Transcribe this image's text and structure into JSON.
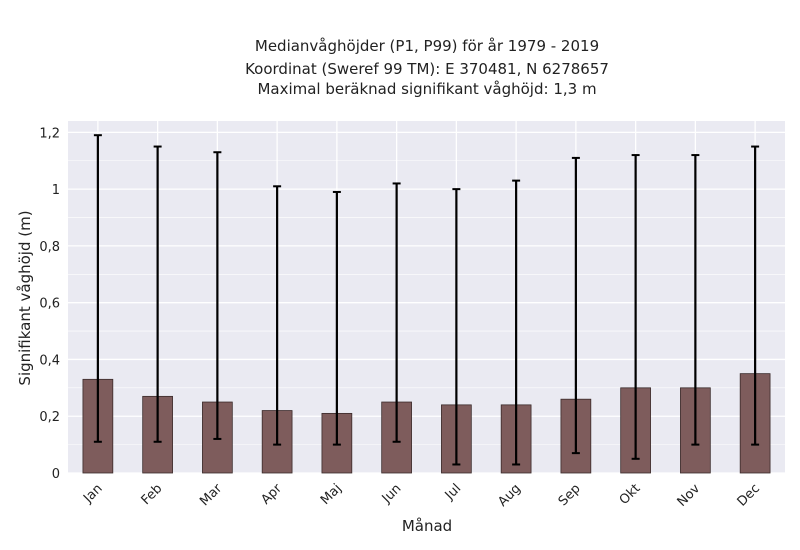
{
  "chart_data": {
    "type": "bar",
    "title_lines": [
      "Medianvåghöjder (P1, P99) för år 1979 - 2019",
      "Koordinat (Sweref 99 TM): E 370481, N 6278657",
      "Maximal beräknad signifikant våghöjd: 1,3 m"
    ],
    "xlabel": "Månad",
    "ylabel": "Signifikant våghöjd (m)",
    "categories": [
      "Jan",
      "Feb",
      "Mar",
      "Apr",
      "Maj",
      "Jun",
      "Jul",
      "Aug",
      "Sep",
      "Okt",
      "Nov",
      "Dec"
    ],
    "series": [
      {
        "values": [
          0.33,
          0.27,
          0.25,
          0.22,
          0.21,
          0.25,
          0.24,
          0.24,
          0.26,
          0.3,
          0.3,
          0.35
        ],
        "error_low": [
          0.11,
          0.11,
          0.12,
          0.1,
          0.1,
          0.11,
          0.03,
          0.03,
          0.07,
          0.05,
          0.1,
          0.1
        ],
        "error_high": [
          1.19,
          1.15,
          1.13,
          1.01,
          0.99,
          1.02,
          1.0,
          1.03,
          1.11,
          1.12,
          1.12,
          1.15
        ]
      }
    ],
    "ylim": [
      0,
      1.24
    ],
    "yticks": [
      0,
      0.2,
      0.4,
      0.6,
      0.8,
      1.0,
      1.2
    ],
    "ytick_labels": [
      "0",
      "0,2",
      "0,4",
      "0,6",
      "0,8",
      "1",
      "1,2"
    ],
    "grid": true,
    "colors": {
      "bar": "#7e5c5c",
      "bar_edge": "#3a2a2a",
      "errorbar": "#000000",
      "plot_bg": "#eaeaf2",
      "grid": "#ffffff"
    }
  }
}
